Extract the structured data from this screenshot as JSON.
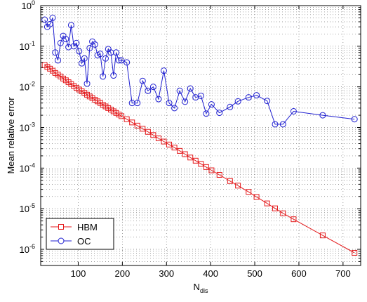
{
  "chart_data": {
    "type": "line",
    "title": "",
    "xlabel": "N",
    "xlabel_sub": "dis",
    "ylabel": "Mean relative error",
    "xlim": [
      15,
      740
    ],
    "ylim": [
      4e-07,
      1
    ],
    "yscale": "log",
    "grid": true,
    "legend_position": "bottom-left",
    "x_ticks": [
      100,
      200,
      300,
      400,
      500,
      600,
      700
    ],
    "y_ticks": [
      {
        "value": 1e-06,
        "base": "10",
        "exp": "-6"
      },
      {
        "value": 1e-05,
        "base": "10",
        "exp": "-5"
      },
      {
        "value": 0.0001,
        "base": "10",
        "exp": "-4"
      },
      {
        "value": 0.001,
        "base": "10",
        "exp": "-3"
      },
      {
        "value": 0.01,
        "base": "10",
        "exp": "-2"
      },
      {
        "value": 0.1,
        "base": "10",
        "exp": "-1"
      },
      {
        "value": 1,
        "base": "10",
        "exp": "0"
      }
    ],
    "series": [
      {
        "name": "HBM",
        "color": "#e41a1c",
        "marker": "square",
        "x": [
          24,
          30,
          36,
          42,
          48,
          54,
          60,
          66,
          72,
          78,
          84,
          90,
          96,
          102,
          108,
          114,
          120,
          126,
          132,
          138,
          144,
          150,
          156,
          162,
          168,
          174,
          180,
          186,
          192,
          198,
          210,
          222,
          234,
          246,
          258,
          270,
          282,
          294,
          306,
          318,
          330,
          342,
          354,
          366,
          378,
          390,
          402,
          420,
          444,
          462,
          486,
          504,
          528,
          546,
          564,
          588,
          654,
          726
        ],
        "y": [
          0.034,
          0.031,
          0.028,
          0.025,
          0.022,
          0.02,
          0.018,
          0.016,
          0.0145,
          0.013,
          0.0117,
          0.0105,
          0.0095,
          0.0086,
          0.0078,
          0.0071,
          0.0064,
          0.0058,
          0.0053,
          0.0048,
          0.0044,
          0.004,
          0.0036,
          0.0033,
          0.003,
          0.00275,
          0.0025,
          0.00228,
          0.00208,
          0.0019,
          0.0016,
          0.00133,
          0.00111,
          0.00093,
          0.00078,
          0.00065,
          0.00054,
          0.00045,
          0.00038,
          0.00032,
          0.000265,
          0.00022,
          0.000182,
          0.000152,
          0.000127,
          0.000106,
          8.8e-05,
          6.8e-05,
          4.8e-05,
          3.7e-05,
          2.6e-05,
          1.95e-05,
          1.35e-05,
          1.02e-05,
          7.7e-06,
          5.5e-06,
          2.2e-06,
          8.2e-07
        ]
      },
      {
        "name": "OC",
        "color": "#1f1fd0",
        "marker": "circle",
        "x": [
          24,
          30,
          36,
          42,
          48,
          54,
          60,
          66,
          72,
          78,
          84,
          90,
          96,
          102,
          108,
          114,
          120,
          126,
          132,
          138,
          144,
          150,
          156,
          162,
          168,
          174,
          180,
          186,
          192,
          198,
          210,
          222,
          234,
          246,
          258,
          270,
          282,
          294,
          306,
          318,
          330,
          342,
          354,
          366,
          378,
          390,
          402,
          420,
          444,
          462,
          486,
          504,
          528,
          546,
          564,
          588,
          654,
          726
        ],
        "y": [
          0.45,
          0.3,
          0.35,
          0.5,
          0.07,
          0.045,
          0.12,
          0.18,
          0.15,
          0.095,
          0.33,
          0.1,
          0.12,
          0.075,
          0.038,
          0.05,
          0.012,
          0.09,
          0.13,
          0.11,
          0.06,
          0.065,
          0.018,
          0.05,
          0.085,
          0.07,
          0.019,
          0.07,
          0.045,
          0.045,
          0.04,
          0.004,
          0.004,
          0.014,
          0.008,
          0.01,
          0.005,
          0.025,
          0.004,
          0.003,
          0.008,
          0.0043,
          0.0091,
          0.0055,
          0.006,
          0.0022,
          0.0037,
          0.0023,
          0.0032,
          0.0044,
          0.0055,
          0.0062,
          0.0045,
          0.0012,
          0.0012,
          0.0025,
          0.002,
          0.0016
        ]
      }
    ]
  }
}
